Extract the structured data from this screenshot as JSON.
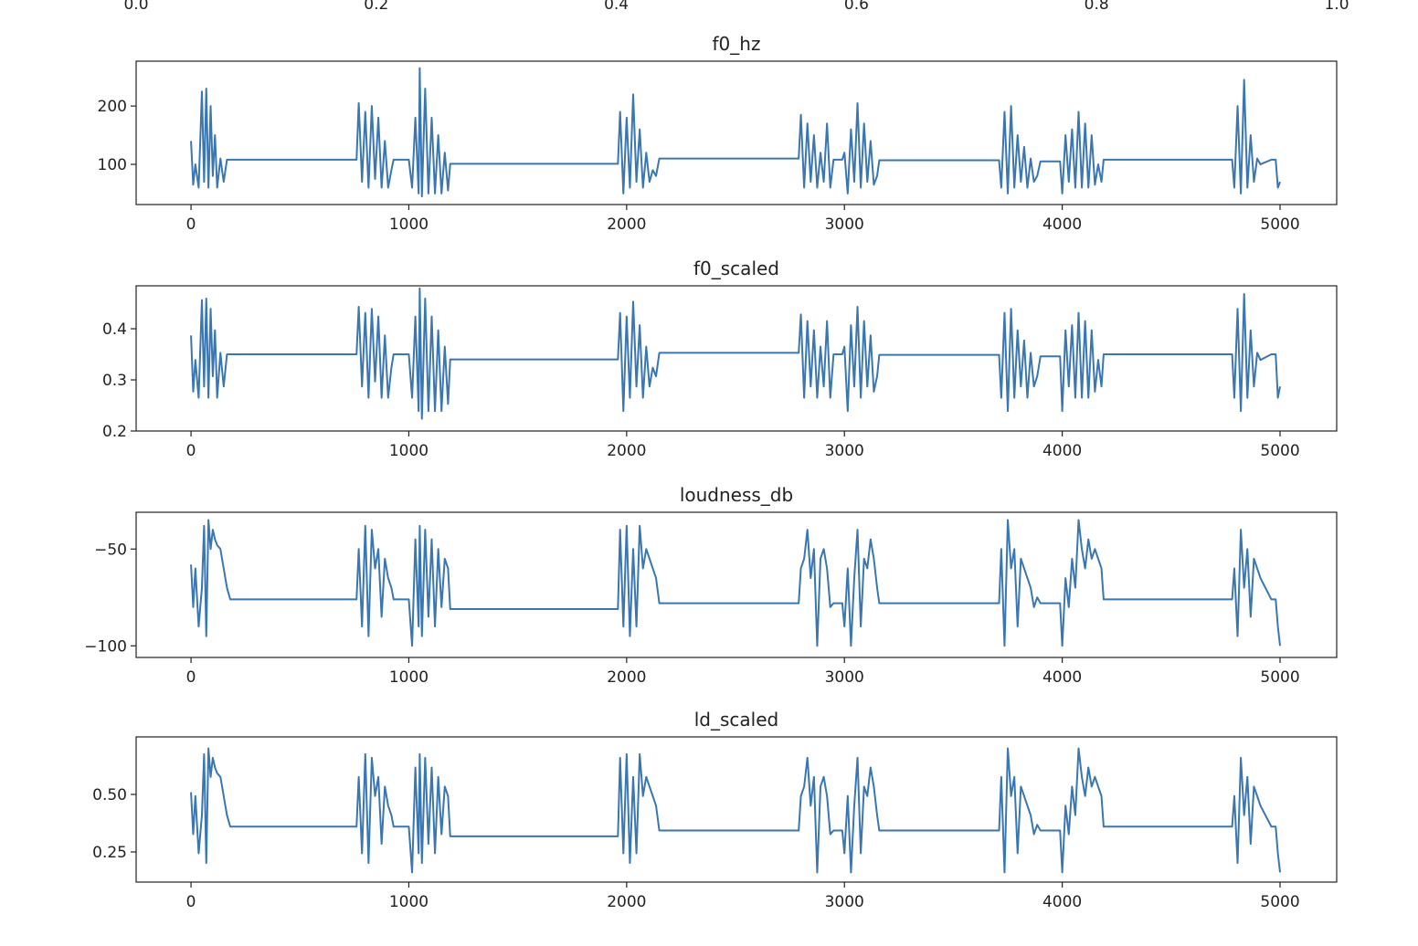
{
  "chart_data": [
    {
      "type": "axes",
      "xlim": [
        0,
        1
      ],
      "xticks": [
        {
          "value": 0,
          "label": "0.0"
        },
        {
          "value": 0.2,
          "label": "0.2"
        },
        {
          "value": 0.4,
          "label": "0.4"
        },
        {
          "value": 0.6,
          "label": "0.6"
        },
        {
          "value": 0.8,
          "label": "0.8"
        },
        {
          "value": 1,
          "label": "1.0"
        }
      ]
    },
    {
      "type": "line",
      "title": "f0_hz",
      "color": "#3a76b1",
      "xlim": [
        -252,
        5260
      ],
      "ylim": [
        31,
        277
      ],
      "xticks": [
        0,
        1000,
        2000,
        3000,
        4000,
        5000
      ],
      "yticks": [
        100,
        200
      ],
      "x": [
        0,
        10,
        20,
        35,
        50,
        60,
        70,
        80,
        90,
        100,
        110,
        120,
        135,
        150,
        165,
        180,
        760,
        770,
        785,
        800,
        815,
        830,
        845,
        860,
        875,
        890,
        905,
        920,
        930,
        1000,
        1015,
        1030,
        1045,
        1050,
        1060,
        1075,
        1090,
        1105,
        1120,
        1135,
        1150,
        1165,
        1180,
        1190,
        1960,
        1970,
        1985,
        2000,
        2015,
        2030,
        2045,
        2060,
        2075,
        2090,
        2105,
        2120,
        2135,
        2150,
        2790,
        2800,
        2815,
        2830,
        2845,
        2860,
        2875,
        2890,
        2905,
        2920,
        2935,
        2950,
        2990,
        3000,
        3015,
        3030,
        3045,
        3060,
        3075,
        3090,
        3105,
        3120,
        3135,
        3150,
        3160,
        3710,
        3720,
        3735,
        3750,
        3765,
        3780,
        3795,
        3810,
        3825,
        3840,
        3855,
        3870,
        3885,
        3900,
        3990,
        4000,
        4015,
        4030,
        4045,
        4060,
        4075,
        4090,
        4105,
        4120,
        4135,
        4150,
        4165,
        4180,
        4190,
        4780,
        4790,
        4805,
        4820,
        4835,
        4850,
        4865,
        4880,
        4895,
        4910,
        4960,
        4980,
        4990,
        5000
      ],
      "values": [
        140,
        65,
        100,
        60,
        225,
        70,
        230,
        60,
        200,
        80,
        150,
        60,
        110,
        70,
        108,
        108,
        108,
        205,
        70,
        190,
        60,
        200,
        75,
        180,
        60,
        140,
        60,
        90,
        108,
        108,
        60,
        180,
        50,
        265,
        45,
        230,
        50,
        180,
        50,
        150,
        50,
        120,
        55,
        101,
        101,
        190,
        50,
        180,
        60,
        220,
        70,
        160,
        60,
        120,
        70,
        90,
        80,
        110,
        110,
        185,
        60,
        170,
        70,
        150,
        60,
        120,
        70,
        170,
        60,
        108,
        108,
        120,
        50,
        160,
        70,
        205,
        60,
        170,
        70,
        140,
        65,
        80,
        107,
        107,
        60,
        190,
        50,
        200,
        60,
        150,
        70,
        130,
        60,
        110,
        70,
        80,
        105,
        105,
        50,
        150,
        70,
        160,
        60,
        190,
        60,
        170,
        60,
        150,
        65,
        100,
        70,
        108,
        108,
        60,
        200,
        50,
        245,
        60,
        150,
        70,
        110,
        100,
        108,
        108,
        60,
        70
      ]
    },
    {
      "type": "line",
      "title": "f0_scaled",
      "color": "#3a76b1",
      "xlim": [
        -252,
        5260
      ],
      "ylim": [
        0.2,
        0.484
      ],
      "xticks": [
        0,
        1000,
        2000,
        3000,
        4000,
        5000
      ],
      "yticks": [
        0.2,
        0.3,
        0.4
      ],
      "x": [
        0,
        10,
        20,
        35,
        50,
        60,
        70,
        80,
        90,
        100,
        110,
        120,
        135,
        150,
        165,
        180,
        760,
        770,
        785,
        800,
        815,
        830,
        845,
        860,
        875,
        890,
        905,
        920,
        930,
        1000,
        1015,
        1030,
        1045,
        1050,
        1060,
        1075,
        1090,
        1105,
        1120,
        1135,
        1150,
        1165,
        1180,
        1190,
        1960,
        1970,
        1985,
        2000,
        2015,
        2030,
        2045,
        2060,
        2075,
        2090,
        2105,
        2120,
        2135,
        2150,
        2790,
        2800,
        2815,
        2830,
        2845,
        2860,
        2875,
        2890,
        2905,
        2920,
        2935,
        2950,
        2990,
        3000,
        3015,
        3030,
        3045,
        3060,
        3075,
        3090,
        3105,
        3120,
        3135,
        3150,
        3160,
        3710,
        3720,
        3735,
        3750,
        3765,
        3780,
        3795,
        3810,
        3825,
        3840,
        3855,
        3870,
        3885,
        3900,
        3990,
        4000,
        4015,
        4030,
        4045,
        4060,
        4075,
        4090,
        4105,
        4120,
        4135,
        4150,
        4165,
        4180,
        4190,
        4780,
        4790,
        4805,
        4820,
        4835,
        4850,
        4865,
        4880,
        4895,
        4910,
        4960,
        4980,
        4990,
        5000
      ],
      "values": [
        0.387,
        0.277,
        0.339,
        0.265,
        0.456,
        0.287,
        0.459,
        0.265,
        0.439,
        0.307,
        0.397,
        0.265,
        0.353,
        0.287,
        0.35,
        0.35,
        0.35,
        0.443,
        0.287,
        0.431,
        0.265,
        0.439,
        0.297,
        0.424,
        0.265,
        0.387,
        0.265,
        0.324,
        0.35,
        0.35,
        0.265,
        0.424,
        0.239,
        0.479,
        0.224,
        0.459,
        0.239,
        0.424,
        0.239,
        0.397,
        0.239,
        0.365,
        0.253,
        0.34,
        0.34,
        0.431,
        0.239,
        0.424,
        0.265,
        0.453,
        0.287,
        0.407,
        0.265,
        0.365,
        0.287,
        0.324,
        0.307,
        0.353,
        0.353,
        0.428,
        0.265,
        0.415,
        0.287,
        0.397,
        0.265,
        0.365,
        0.287,
        0.415,
        0.265,
        0.35,
        0.35,
        0.365,
        0.239,
        0.407,
        0.287,
        0.443,
        0.265,
        0.415,
        0.287,
        0.387,
        0.277,
        0.307,
        0.349,
        0.349,
        0.265,
        0.431,
        0.239,
        0.439,
        0.265,
        0.397,
        0.287,
        0.377,
        0.265,
        0.353,
        0.287,
        0.307,
        0.346,
        0.346,
        0.239,
        0.397,
        0.287,
        0.407,
        0.265,
        0.431,
        0.265,
        0.415,
        0.265,
        0.397,
        0.277,
        0.339,
        0.287,
        0.35,
        0.35,
        0.265,
        0.439,
        0.239,
        0.468,
        0.265,
        0.397,
        0.287,
        0.353,
        0.339,
        0.35,
        0.35,
        0.265,
        0.287
      ]
    },
    {
      "type": "line",
      "title": "loudness_db",
      "color": "#3a76b1",
      "xlim": [
        -252,
        5260
      ],
      "ylim": [
        -106,
        -31
      ],
      "xticks": [
        0,
        1000,
        2000,
        3000,
        4000,
        5000
      ],
      "yticks": [
        {
          "value": -100,
          "label": "−100"
        },
        {
          "value": -50,
          "label": "−50"
        }
      ],
      "x": [
        0,
        10,
        20,
        35,
        50,
        60,
        70,
        80,
        90,
        100,
        110,
        120,
        135,
        150,
        165,
        180,
        760,
        770,
        785,
        800,
        815,
        830,
        845,
        860,
        875,
        890,
        905,
        920,
        930,
        1000,
        1015,
        1030,
        1045,
        1050,
        1060,
        1075,
        1090,
        1105,
        1120,
        1135,
        1150,
        1165,
        1180,
        1190,
        1960,
        1970,
        1985,
        2000,
        2015,
        2030,
        2045,
        2060,
        2075,
        2090,
        2105,
        2120,
        2135,
        2150,
        2790,
        2800,
        2815,
        2830,
        2845,
        2860,
        2875,
        2890,
        2905,
        2920,
        2935,
        2950,
        2990,
        3000,
        3015,
        3030,
        3045,
        3060,
        3075,
        3090,
        3105,
        3120,
        3135,
        3150,
        3160,
        3710,
        3720,
        3735,
        3750,
        3765,
        3780,
        3795,
        3810,
        3825,
        3840,
        3855,
        3870,
        3885,
        3900,
        3990,
        4000,
        4015,
        4030,
        4045,
        4060,
        4075,
        4090,
        4105,
        4120,
        4135,
        4150,
        4165,
        4180,
        4190,
        4780,
        4790,
        4805,
        4820,
        4835,
        4850,
        4865,
        4880,
        4895,
        4910,
        4960,
        4980,
        4990,
        5000
      ],
      "values": [
        -58,
        -80,
        -60,
        -90,
        -70,
        -38,
        -95,
        -35,
        -50,
        -40,
        -45,
        -48,
        -50,
        -60,
        -70,
        -76,
        -76,
        -50,
        -90,
        -38,
        -95,
        -40,
        -60,
        -50,
        -85,
        -55,
        -65,
        -70,
        -76,
        -76,
        -100,
        -45,
        -90,
        -38,
        -95,
        -40,
        -85,
        -45,
        -90,
        -50,
        -80,
        -55,
        -60,
        -81,
        -81,
        -40,
        -90,
        -38,
        -95,
        -50,
        -90,
        -38,
        -60,
        -50,
        -55,
        -60,
        -65,
        -78,
        -78,
        -60,
        -55,
        -40,
        -65,
        -50,
        -100,
        -55,
        -50,
        -60,
        -80,
        -78,
        -78,
        -90,
        -60,
        -100,
        -65,
        -40,
        -90,
        -55,
        -60,
        -45,
        -55,
        -70,
        -78,
        -78,
        -50,
        -100,
        -35,
        -60,
        -50,
        -90,
        -55,
        -60,
        -65,
        -70,
        -80,
        -75,
        -78,
        -78,
        -100,
        -65,
        -80,
        -55,
        -70,
        -35,
        -50,
        -60,
        -45,
        -55,
        -50,
        -55,
        -60,
        -76,
        -76,
        -60,
        -95,
        -40,
        -70,
        -50,
        -85,
        -55,
        -60,
        -65,
        -76,
        -76,
        -90,
        -100
      ]
    },
    {
      "type": "line",
      "title": "ld_scaled",
      "color": "#3a76b1",
      "xlim": [
        -252,
        5260
      ],
      "ylim": [
        0.119,
        0.75
      ],
      "xticks": [
        0,
        1000,
        2000,
        3000,
        4000,
        5000
      ],
      "yticks": [
        {
          "value": 0.25,
          "label": "0.25"
        },
        {
          "value": 0.5,
          "label": "0.50"
        }
      ],
      "x": [
        0,
        10,
        20,
        35,
        50,
        60,
        70,
        80,
        90,
        100,
        110,
        120,
        135,
        150,
        165,
        180,
        760,
        770,
        785,
        800,
        815,
        830,
        845,
        860,
        875,
        890,
        905,
        920,
        930,
        1000,
        1015,
        1030,
        1045,
        1050,
        1060,
        1075,
        1090,
        1105,
        1120,
        1135,
        1150,
        1165,
        1180,
        1190,
        1960,
        1970,
        1985,
        2000,
        2015,
        2030,
        2045,
        2060,
        2075,
        2090,
        2105,
        2120,
        2135,
        2150,
        2790,
        2800,
        2815,
        2830,
        2845,
        2860,
        2875,
        2890,
        2905,
        2920,
        2935,
        2950,
        2990,
        3000,
        3015,
        3030,
        3045,
        3060,
        3075,
        3090,
        3105,
        3120,
        3135,
        3150,
        3160,
        3710,
        3720,
        3735,
        3750,
        3765,
        3780,
        3795,
        3810,
        3825,
        3840,
        3855,
        3870,
        3885,
        3900,
        3990,
        4000,
        4015,
        4030,
        4045,
        4060,
        4075,
        4090,
        4105,
        4120,
        4135,
        4150,
        4165,
        4180,
        4190,
        4780,
        4790,
        4805,
        4820,
        4835,
        4850,
        4865,
        4880,
        4895,
        4910,
        4960,
        4980,
        4990,
        5000
      ],
      "values": [
        0.509,
        0.327,
        0.493,
        0.244,
        0.41,
        0.675,
        0.202,
        0.7,
        0.576,
        0.659,
        0.617,
        0.592,
        0.576,
        0.493,
        0.41,
        0.36,
        0.36,
        0.576,
        0.244,
        0.675,
        0.202,
        0.659,
        0.493,
        0.576,
        0.285,
        0.534,
        0.451,
        0.41,
        0.36,
        0.36,
        0.161,
        0.617,
        0.244,
        0.675,
        0.202,
        0.659,
        0.285,
        0.617,
        0.244,
        0.576,
        0.327,
        0.534,
        0.493,
        0.318,
        0.318,
        0.659,
        0.244,
        0.675,
        0.202,
        0.576,
        0.244,
        0.675,
        0.493,
        0.576,
        0.534,
        0.493,
        0.451,
        0.343,
        0.343,
        0.493,
        0.534,
        0.659,
        0.451,
        0.576,
        0.161,
        0.534,
        0.576,
        0.493,
        0.327,
        0.343,
        0.343,
        0.244,
        0.493,
        0.161,
        0.451,
        0.659,
        0.244,
        0.534,
        0.493,
        0.617,
        0.534,
        0.41,
        0.343,
        0.343,
        0.576,
        0.161,
        0.7,
        0.493,
        0.576,
        0.244,
        0.534,
        0.493,
        0.451,
        0.41,
        0.327,
        0.368,
        0.343,
        0.343,
        0.161,
        0.451,
        0.327,
        0.534,
        0.41,
        0.7,
        0.576,
        0.493,
        0.617,
        0.534,
        0.576,
        0.534,
        0.493,
        0.36,
        0.36,
        0.493,
        0.202,
        0.659,
        0.41,
        0.576,
        0.285,
        0.534,
        0.493,
        0.451,
        0.36,
        0.36,
        0.244,
        0.161
      ]
    }
  ]
}
